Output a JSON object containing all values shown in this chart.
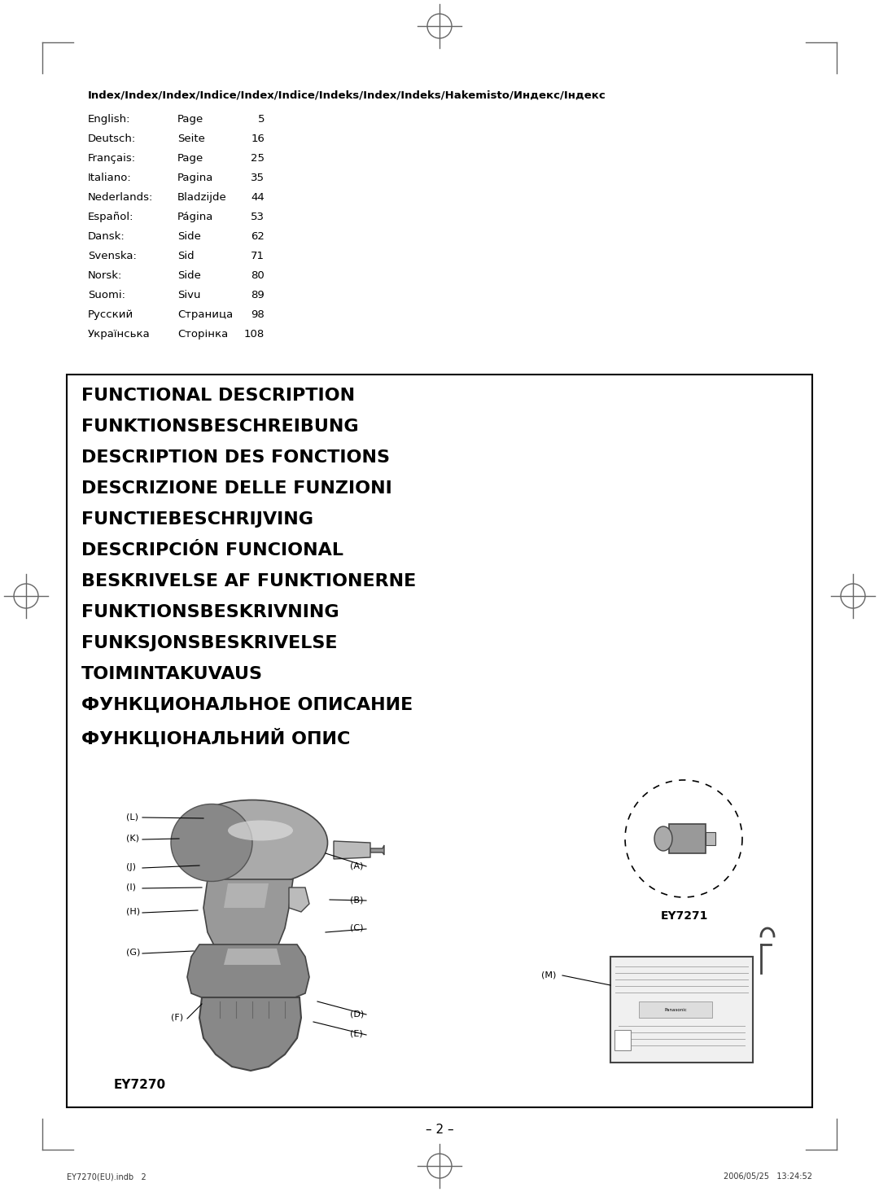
{
  "bg_color": "#ffffff",
  "page_title_index": "Index/Index/Index/Indice/Index/Indice/Indeks/Index/Indeks/Hakemisto/Индекс/Індекс",
  "index_entries": [
    [
      "English:",
      "Page",
      "5"
    ],
    [
      "Deutsch:",
      "Seite",
      "16"
    ],
    [
      "Français:",
      "Page",
      "25"
    ],
    [
      "Italiano:",
      "Pagina",
      "35"
    ],
    [
      "Nederlands:",
      "Bladzijde",
      "44"
    ],
    [
      "Español:",
      "Página",
      "53"
    ],
    [
      "Dansk:",
      "Side",
      "62"
    ],
    [
      "Svenska:",
      "Sid",
      "71"
    ],
    [
      "Norsk:",
      "Side",
      "80"
    ],
    [
      "Suomi:",
      "Sivu",
      "89"
    ],
    [
      "Русский",
      "Страница",
      "98"
    ],
    [
      "Українська",
      "Сторінка",
      "108"
    ]
  ],
  "functional_lines": [
    "FUNCTIONAL DESCRIPTION",
    "FUNKTIONSBESCHREIBUNG",
    "DESCRIPTION DES FONCTIONS",
    "DESCRIZIONE DELLE FUNZIONI",
    "FUNCTIEBESCHRIJVING",
    "DESCRIPCIÓN FUNCIONAL",
    "BESKRIVELSE AF FUNKTIONERNE",
    "FUNKTIONSBESKRIVNING",
    "FUNKSJONSBESKRIVELSE",
    "TOIMINTAKUVAUS",
    "ФУНКЦИОНАЛЬНОЕ ОПИСАНИЕ",
    "ФУНКЦІОНАЛЬНИЙ ОПИС"
  ],
  "footer_page": "– 2 –",
  "footer_left": "EY7270(EU).indb   2",
  "footer_right": "2006/05/25   13:24:52",
  "model_left": "EY7270",
  "model_right": "EY7271"
}
